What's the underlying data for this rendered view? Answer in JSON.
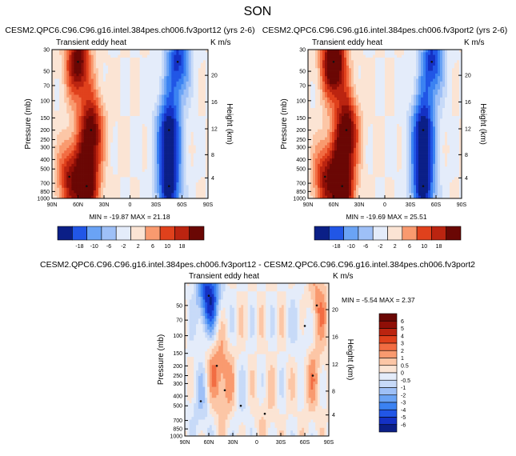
{
  "page": {
    "season": "SON"
  },
  "chart_data": [
    {
      "type": "heatmap",
      "title": "CESM2.QPC6.C96.C96.g16.intel.384pes.ch006.fv3port12 (yrs 2-6)",
      "left_label": "Transient eddy heat",
      "right_label": "K m/s",
      "ylabel": "Pressure (mb)",
      "right_axis_label": "Height (km)",
      "xticks": [
        "90N",
        "60N",
        "30N",
        "0",
        "30S",
        "60S",
        "90S"
      ],
      "yticks": [
        "30",
        "50",
        "70",
        "100",
        "150",
        "200",
        "250",
        "300",
        "400",
        "500",
        "700",
        "850",
        "1000"
      ],
      "height_ticks": [
        "20",
        "16",
        "12",
        "8",
        "4"
      ],
      "stats": "MIN = -19.87   MAX = 21.18",
      "stat_min": -19.87,
      "stat_max": 21.18,
      "colorbar_labels": [
        "-18",
        "-10",
        "-6",
        "-2",
        "2",
        "6",
        "10",
        "18"
      ],
      "lobes": [
        {
          "lat": 60,
          "p": 40,
          "value": 20
        },
        {
          "lat": 45,
          "p": 200,
          "value": 19
        },
        {
          "lat": 50,
          "p": 750,
          "value": 21
        },
        {
          "lat": 70,
          "p": 600,
          "value": 14
        },
        {
          "lat": -45,
          "p": 200,
          "value": -19
        },
        {
          "lat": -45,
          "p": 750,
          "value": -19
        },
        {
          "lat": -55,
          "p": 40,
          "value": -16
        }
      ]
    },
    {
      "type": "heatmap",
      "title": "CESM2.QPC6.C96.C96.g16.intel.384pes.ch006.fv3port2 (yrs 2-6)",
      "left_label": "Transient eddy heat",
      "right_label": "K m/s",
      "ylabel": "Pressure (mb)",
      "right_axis_label": "Height (km)",
      "xticks": [
        "90N",
        "60N",
        "30N",
        "0",
        "30S",
        "60S",
        "90S"
      ],
      "yticks": [
        "30",
        "50",
        "70",
        "100",
        "150",
        "200",
        "250",
        "300",
        "400",
        "500",
        "700",
        "850",
        "1000"
      ],
      "height_ticks": [
        "20",
        "16",
        "12",
        "8",
        "4"
      ],
      "stats": "MIN = -19.69   MAX = 25.51",
      "stat_min": -19.69,
      "stat_max": 25.51,
      "colorbar_labels": [
        "-18",
        "-10",
        "-6",
        "-2",
        "2",
        "6",
        "10",
        "18"
      ],
      "lobes": [
        {
          "lat": 60,
          "p": 40,
          "value": 25
        },
        {
          "lat": 45,
          "p": 200,
          "value": 20
        },
        {
          "lat": 50,
          "p": 750,
          "value": 22
        },
        {
          "lat": 70,
          "p": 600,
          "value": 14
        },
        {
          "lat": -45,
          "p": 200,
          "value": -19
        },
        {
          "lat": -45,
          "p": 750,
          "value": -19
        },
        {
          "lat": -55,
          "p": 40,
          "value": -16
        }
      ]
    },
    {
      "type": "heatmap",
      "title": "CESM2.QPC6.C96.C96.g16.intel.384pes.ch006.fv3port12 - CESM2.QPC6.C96.C96.g16.intel.384pes.ch006.fv3port2",
      "left_label": "Transient eddy heat",
      "right_label": "K m/s",
      "ylabel": "Pressure (mb)",
      "right_axis_label": "Height (km)",
      "xticks": [
        "90N",
        "60N",
        "30N",
        "0",
        "30S",
        "60S",
        "90S"
      ],
      "yticks": [
        "50",
        "70",
        "100",
        "150",
        "200",
        "250",
        "300",
        "400",
        "500",
        "700",
        "850",
        "1000"
      ],
      "height_ticks": [
        "20",
        "16",
        "12",
        "8",
        "4"
      ],
      "stats": "MIN = -5.54   MAX =  2.37",
      "stat_min": -5.54,
      "stat_max": 2.37,
      "colorbar_labels": [
        "6",
        "5",
        "4",
        "3",
        "2",
        "1",
        "0.5",
        "0",
        "-0.5",
        "-1",
        "-2",
        "-3",
        "-4",
        "-5",
        "-6"
      ],
      "lobes": [
        {
          "lat": 60,
          "p": 40,
          "value": -5.5
        },
        {
          "lat": 50,
          "p": 200,
          "value": 2
        },
        {
          "lat": 40,
          "p": 350,
          "value": 1.5
        },
        {
          "lat": 70,
          "p": 450,
          "value": -1.5
        },
        {
          "lat": -75,
          "p": 50,
          "value": 2.3
        },
        {
          "lat": -70,
          "p": 250,
          "value": 1.6
        },
        {
          "lat": -60,
          "p": 80,
          "value": -1.5
        },
        {
          "lat": 20,
          "p": 500,
          "value": -0.7
        },
        {
          "lat": -10,
          "p": 600,
          "value": 0.7
        }
      ]
    }
  ]
}
